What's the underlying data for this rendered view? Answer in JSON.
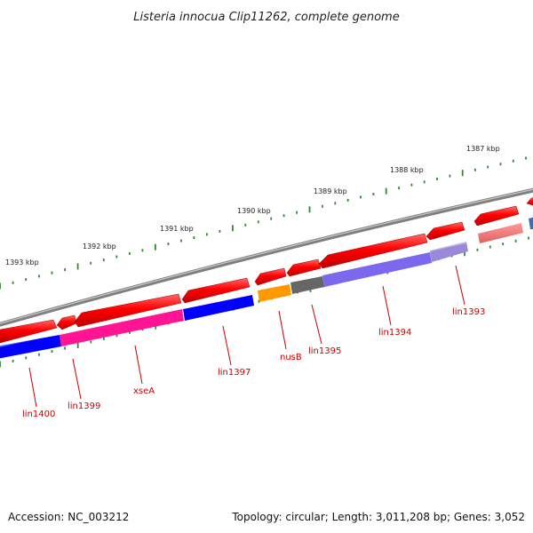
{
  "title": "Listeria innocua Clip11262, complete genome",
  "ruler": [
    {
      "label": "1387 kbp"
    },
    {
      "label": "1388 kbp"
    },
    {
      "label": "1389 kbp"
    },
    {
      "label": "1390 kbp"
    },
    {
      "label": "1391 kbp"
    },
    {
      "label": "1392 kbp"
    },
    {
      "label": "1393 kbp"
    }
  ],
  "genes": [
    {
      "label": "lin1393",
      "color": "#9a89d8"
    },
    {
      "label": "lin1394",
      "color": "#7b68ee"
    },
    {
      "label": "lin1395",
      "color": "#666666"
    },
    {
      "label": "nusB",
      "color": "#ff9900"
    },
    {
      "label": "lin1397",
      "color": "#0000ff"
    },
    {
      "label": "xseA",
      "color": "#ff1493"
    },
    {
      "label": "lin1399",
      "color": "#ff1493"
    },
    {
      "label": "lin1400",
      "color": "#0000ff"
    }
  ],
  "footer": {
    "accession": "Accession: NC_003212",
    "summary": "Topology: circular; Length: 3,011,208 bp; Genes: 3,052"
  },
  "colors": {
    "forward_arrow": "#ff0000",
    "backbone": "#888888",
    "tick": "#2e8b2e",
    "label": "#cc0000"
  }
}
